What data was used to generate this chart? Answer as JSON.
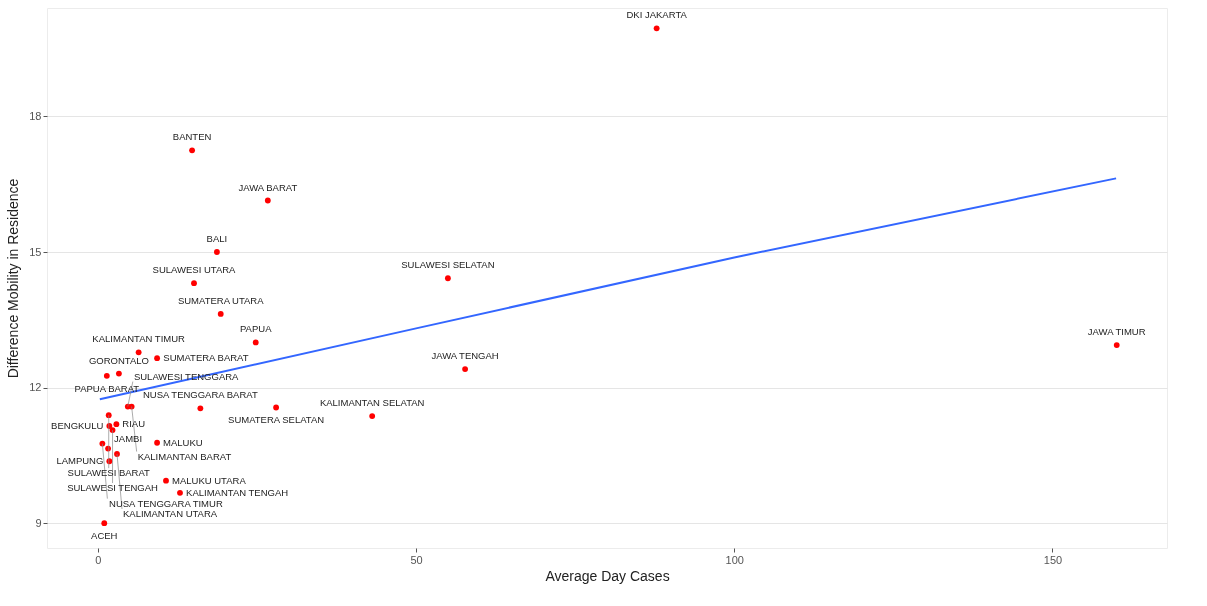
{
  "chart_data": {
    "type": "scatter",
    "xlabel": "Average Day Cases",
    "ylabel": "Difference Mobility in Residence",
    "xlim": [
      -8,
      168
    ],
    "xticks": [
      0,
      50,
      100,
      150
    ],
    "ylim": [
      8.45,
      20.4
    ],
    "yticks": [
      9,
      12,
      15,
      18
    ],
    "grid": "y",
    "series": [
      {
        "marker": "circle",
        "color": "#ff0000",
        "x": [
          87.8,
          14.8,
          26.7,
          18.7,
          15.1,
          19.3,
          24.8,
          55.0,
          160.1,
          57.7,
          43.1,
          28.0,
          16.1,
          6.4,
          9.3,
          3.3,
          1.4,
          4.7,
          5.3,
          1.7,
          1.8,
          2.9,
          2.3,
          0.7,
          1.6,
          9.3,
          3.0,
          1.8,
          10.7,
          12.9,
          1.0
        ],
        "values": [
          19.95,
          17.25,
          16.14,
          15.0,
          14.31,
          13.63,
          13.0,
          14.42,
          12.94,
          12.41,
          11.37,
          11.56,
          11.54,
          12.78,
          12.65,
          12.31,
          12.26,
          11.58,
          11.58,
          11.39,
          11.15,
          11.19,
          11.06,
          10.76,
          10.65,
          10.78,
          10.53,
          10.37,
          9.94,
          9.67,
          9.0
        ]
      },
      {
        "type": "line",
        "color": "#3366ff",
        "x": [
          0.3,
          50,
          100,
          160
        ],
        "values": [
          11.74,
          13.31,
          14.88,
          16.63
        ]
      }
    ],
    "annotations": [
      {
        "text": "DKI JAKARTA",
        "x": 87.8,
        "y": 19.95
      },
      {
        "text": "BANTEN",
        "x": 14.8,
        "y": 17.25
      },
      {
        "text": "JAWA BARAT",
        "x": 26.7,
        "y": 16.14
      },
      {
        "text": "BALI",
        "x": 18.7,
        "y": 15.0
      },
      {
        "text": "SULAWESI UTARA",
        "x": 15.1,
        "y": 14.31
      },
      {
        "text": "SUMATERA UTARA",
        "x": 19.3,
        "y": 13.63
      },
      {
        "text": "PAPUA",
        "x": 24.8,
        "y": 13.0
      },
      {
        "text": "SULAWESI SELATAN",
        "x": 55.0,
        "y": 14.42
      },
      {
        "text": "JAWA TIMUR",
        "x": 160.1,
        "y": 12.94
      },
      {
        "text": "JAWA TENGAH",
        "x": 57.7,
        "y": 12.41
      },
      {
        "text": "KALIMANTAN SELATAN",
        "x": 43.1,
        "y": 11.37
      },
      {
        "text": "SUMATERA SELATAN",
        "x": 28.0,
        "y": 11.56
      },
      {
        "text": "NUSA TENGGARA BARAT",
        "x": 16.1,
        "y": 11.54
      },
      {
        "text": "KALIMANTAN TIMUR",
        "x": 6.4,
        "y": 12.78
      },
      {
        "text": "SUMATERA BARAT",
        "x": 9.3,
        "y": 12.65
      },
      {
        "text": "GORONTALO",
        "x": 3.3,
        "y": 12.31
      },
      {
        "text": "PAPUA BARAT",
        "x": 1.4,
        "y": 12.26
      },
      {
        "text": "SULAWESI TENGGARA",
        "x": 4.7,
        "y": 11.58
      },
      {
        "text": "KALIMANTAN BARAT",
        "x": 5.3,
        "y": 11.58
      },
      {
        "text": "SULAWESI BARAT",
        "x": 1.7,
        "y": 11.39
      },
      {
        "text": "BENGKULU",
        "x": 1.8,
        "y": 11.15
      },
      {
        "text": "RIAU",
        "x": 2.9,
        "y": 11.19
      },
      {
        "text": "SULAWESI TENGAH",
        "x": 2.3,
        "y": 11.06
      },
      {
        "text": "NUSA TENGGARA TIMUR",
        "x": 0.7,
        "y": 10.76
      },
      {
        "text": "JAMBI",
        "x": 1.6,
        "y": 10.65
      },
      {
        "text": "MALUKU",
        "x": 9.3,
        "y": 10.78
      },
      {
        "text": "KALIMANTAN UTARA",
        "x": 3.0,
        "y": 10.53
      },
      {
        "text": "LAMPUNG",
        "x": 1.8,
        "y": 10.37
      },
      {
        "text": "MALUKU UTARA",
        "x": 10.7,
        "y": 9.94
      },
      {
        "text": "KALIMANTAN TENGAH",
        "x": 12.9,
        "y": 9.67
      },
      {
        "text": "ACEH",
        "x": 1.0,
        "y": 9.0
      }
    ]
  }
}
